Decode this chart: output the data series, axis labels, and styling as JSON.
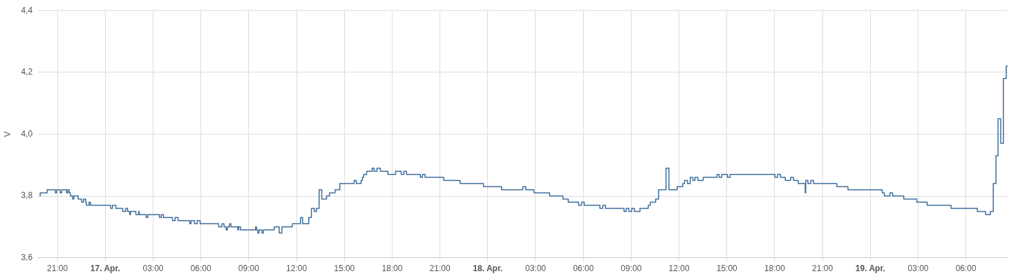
{
  "chart_data": {
    "type": "step",
    "ylabel": "V",
    "grid": true,
    "legend": false,
    "marker": "none",
    "line_style": "solid",
    "xlim": [
      "--04-16T19:47",
      "--04-19T08:37"
    ],
    "xticks": [
      {
        "value": "--04-16T21:00",
        "label": "21:00"
      },
      {
        "value": "--04-17T00:00",
        "label": "17. Apr."
      },
      {
        "value": "--04-17T03:00",
        "label": "03:00"
      },
      {
        "value": "--04-17T06:00",
        "label": "06:00"
      },
      {
        "value": "--04-17T09:00",
        "label": "09:00"
      },
      {
        "value": "--04-17T12:00",
        "label": "12:00"
      },
      {
        "value": "--04-17T15:00",
        "label": "15:00"
      },
      {
        "value": "--04-17T18:00",
        "label": "18:00"
      },
      {
        "value": "--04-17T21:00",
        "label": "21:00"
      },
      {
        "value": "--04-18T00:00",
        "label": "18. Apr."
      },
      {
        "value": "--04-18T03:00",
        "label": "03:00"
      },
      {
        "value": "--04-18T06:00",
        "label": "06:00"
      },
      {
        "value": "--04-18T09:00",
        "label": "09:00"
      },
      {
        "value": "--04-18T12:00",
        "label": "12:00"
      },
      {
        "value": "--04-18T15:00",
        "label": "15:00"
      },
      {
        "value": "--04-18T18:00",
        "label": "18:00"
      },
      {
        "value": "--04-18T21:00",
        "label": "21:00"
      },
      {
        "value": "--04-19T00:00",
        "label": "19. Apr."
      },
      {
        "value": "--04-19T03:00",
        "label": "03:00"
      },
      {
        "value": "--04-19T06:00",
        "label": "06:00"
      }
    ],
    "ylim": [
      3.6,
      4.4
    ],
    "yticks": [
      {
        "value": 3.6,
        "label": "3,6"
      },
      {
        "value": 3.8,
        "label": "3,8"
      },
      {
        "value": 4.0,
        "label": "4,0"
      },
      {
        "value": 4.2,
        "label": "4,2"
      },
      {
        "value": 4.4,
        "label": "4,4"
      }
    ],
    "x": [
      "--04-16T19:53",
      "--04-16T19:55",
      "--04-16T20:21",
      "--04-16T20:52",
      "--04-16T20:57",
      "--04-16T21:10",
      "--04-16T21:16",
      "--04-16T21:34",
      "--04-16T21:39",
      "--04-16T21:44",
      "--04-16T21:49",
      "--04-16T21:57",
      "--04-16T22:02",
      "--04-16T22:18",
      "--04-16T22:31",
      "--04-16T22:38",
      "--04-16T22:46",
      "--04-16T22:49",
      "--04-16T22:59",
      "--04-16T23:04",
      "--04-17T00:20",
      "--04-17T00:27",
      "--04-17T00:40",
      "--04-17T01:06",
      "--04-17T01:17",
      "--04-17T01:24",
      "--04-17T01:32",
      "--04-17T01:35",
      "--04-17T01:55",
      "--04-17T02:06",
      "--04-17T02:08",
      "--04-17T02:34",
      "--04-17T02:40",
      "--04-17T03:24",
      "--04-17T03:31",
      "--04-17T03:39",
      "--04-17T04:13",
      "--04-17T04:23",
      "--04-17T04:34",
      "--04-17T05:18",
      "--04-17T05:23",
      "--04-17T05:36",
      "--04-17T05:46",
      "--04-17T05:57",
      "--04-17T07:07",
      "--04-17T07:19",
      "--04-17T07:27",
      "--04-17T07:35",
      "--04-17T07:40",
      "--04-17T07:48",
      "--04-17T07:53",
      "--04-17T08:19",
      "--04-17T08:22",
      "--04-17T08:29",
      "--04-17T09:26",
      "--04-17T09:29",
      "--04-17T09:34",
      "--04-17T09:39",
      "--04-17T09:50",
      "--04-17T09:55",
      "--04-17T10:36",
      "--04-17T10:55",
      "--04-17T11:05",
      "--04-17T11:44",
      "--04-17T12:15",
      "--04-17T12:23",
      "--04-17T12:46",
      "--04-17T12:56",
      "--04-17T13:07",
      "--04-17T13:15",
      "--04-17T13:25",
      "--04-17T13:35",
      "--04-17T13:53",
      "--04-17T14:04",
      "--04-17T14:25",
      "--04-17T14:43",
      "--04-17T15:37",
      "--04-17T15:45",
      "--04-17T16:03",
      "--04-17T16:08",
      "--04-17T16:13",
      "--04-17T16:24",
      "--04-17T16:45",
      "--04-17T16:52",
      "--04-17T17:03",
      "--04-17T17:16",
      "--04-17T17:44",
      "--04-17T18:13",
      "--04-17T18:34",
      "--04-17T18:44",
      "--04-17T18:54",
      "--04-17T19:46",
      "--04-17T19:54",
      "--04-17T20:04",
      "--04-17T21:14",
      "--04-17T22:16",
      "--04-17T23:44",
      "--04-18T00:52",
      "--04-18T02:12",
      "--04-18T02:23",
      "--04-18T02:54",
      "--04-18T03:53",
      "--04-18T04:43",
      "--04-18T05:03",
      "--04-18T05:42",
      "--04-18T05:53",
      "--04-18T06:03",
      "--04-18T07:02",
      "--04-18T07:13",
      "--04-18T07:23",
      "--04-18T08:33",
      "--04-18T08:41",
      "--04-18T08:51",
      "--04-18T09:02",
      "--04-18T09:12",
      "--04-18T09:33",
      "--04-18T10:04",
      "--04-18T10:12",
      "--04-18T10:32",
      "--04-18T10:43",
      "--04-18T11:11",
      "--04-18T11:22",
      "--04-18T11:53",
      "--04-18T12:14",
      "--04-18T12:21",
      "--04-18T12:32",
      "--04-18T12:42",
      "--04-18T12:52",
      "--04-18T13:00",
      "--04-18T13:11",
      "--04-18T13:31",
      "--04-18T14:23",
      "--04-18T14:31",
      "--04-18T14:41",
      "--04-18T15:02",
      "--04-18T15:12",
      "--04-18T18:01",
      "--04-18T18:11",
      "--04-18T18:22",
      "--04-18T18:40",
      "--04-18T19:00",
      "--04-18T19:11",
      "--04-18T19:29",
      "--04-18T19:55",
      "--04-18T19:57",
      "--04-18T20:05",
      "--04-18T20:16",
      "--04-18T20:26",
      "--04-18T21:54",
      "--04-18T22:36",
      "--04-19T00:45",
      "--04-19T00:53",
      "--04-19T01:14",
      "--04-19T01:24",
      "--04-19T02:06",
      "--04-19T02:55",
      "--04-19T03:34",
      "--04-19T05:04",
      "--04-19T06:43",
      "--04-19T07:14",
      "--04-19T07:32",
      "--04-19T07:43",
      "--04-19T07:53",
      "--04-19T08:01",
      "--04-19T08:11",
      "--04-19T08:21",
      "--04-19T08:32",
      "--04-19T08:37"
    ],
    "series": [
      {
        "color": "#3e6d9c",
        "values": [
          3.8,
          3.81,
          3.82,
          3.81,
          3.82,
          3.81,
          3.82,
          3.81,
          3.82,
          3.81,
          3.8,
          3.79,
          3.8,
          3.79,
          3.78,
          3.79,
          3.78,
          3.77,
          3.78,
          3.77,
          3.76,
          3.77,
          3.76,
          3.75,
          3.76,
          3.75,
          3.74,
          3.75,
          3.74,
          3.75,
          3.74,
          3.73,
          3.74,
          3.73,
          3.74,
          3.73,
          3.72,
          3.73,
          3.72,
          3.71,
          3.72,
          3.71,
          3.72,
          3.71,
          3.7,
          3.71,
          3.7,
          3.69,
          3.7,
          3.71,
          3.7,
          3.69,
          3.7,
          3.69,
          3.7,
          3.69,
          3.68,
          3.69,
          3.68,
          3.69,
          3.7,
          3.68,
          3.7,
          3.71,
          3.73,
          3.71,
          3.73,
          3.76,
          3.75,
          3.76,
          3.82,
          3.79,
          3.8,
          3.81,
          3.82,
          3.84,
          3.85,
          3.84,
          3.85,
          3.86,
          3.87,
          3.88,
          3.89,
          3.88,
          3.89,
          3.88,
          3.87,
          3.88,
          3.87,
          3.88,
          3.87,
          3.86,
          3.87,
          3.86,
          3.85,
          3.84,
          3.83,
          3.82,
          3.83,
          3.82,
          3.81,
          3.8,
          3.79,
          3.78,
          3.77,
          3.78,
          3.77,
          3.76,
          3.77,
          3.76,
          3.75,
          3.76,
          3.75,
          3.76,
          3.75,
          3.76,
          3.77,
          3.78,
          3.79,
          3.82,
          3.89,
          3.82,
          3.83,
          3.84,
          3.85,
          3.84,
          3.86,
          3.85,
          3.86,
          3.85,
          3.86,
          3.87,
          3.86,
          3.87,
          3.86,
          3.87,
          3.86,
          3.87,
          3.86,
          3.85,
          3.86,
          3.85,
          3.84,
          3.81,
          3.85,
          3.84,
          3.85,
          3.84,
          3.83,
          3.82,
          3.81,
          3.8,
          3.81,
          3.8,
          3.79,
          3.78,
          3.77,
          3.76,
          3.75,
          3.74,
          3.75,
          3.84,
          3.93,
          4.05,
          3.97,
          4.18,
          4.22,
          4.22
        ]
      }
    ]
  }
}
